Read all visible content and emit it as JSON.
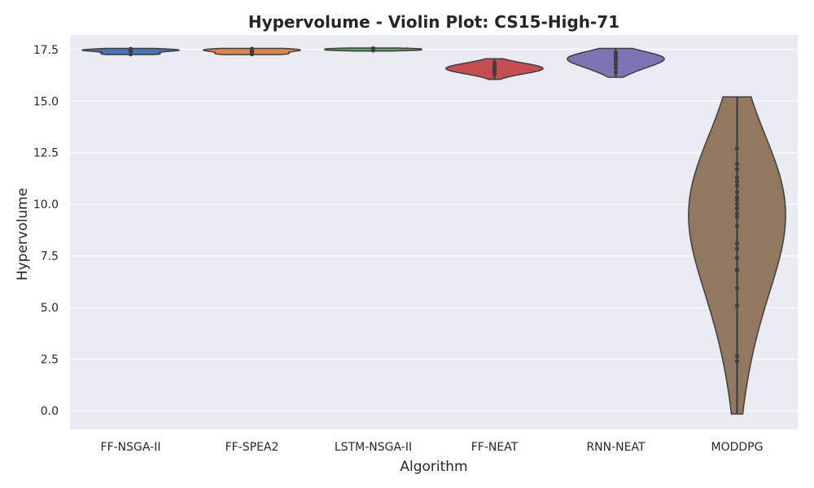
{
  "chart_data": {
    "type": "violin",
    "title": "Hypervolume - Violin Plot: CS15-High-71",
    "xlabel": "Algorithm",
    "ylabel": "Hypervolume",
    "ylim": [
      -0.9,
      18.2
    ],
    "yticks": [
      "0.0",
      "2.5",
      "5.0",
      "7.5",
      "10.0",
      "12.5",
      "15.0",
      "17.5"
    ],
    "ytick_values": [
      0,
      2.5,
      5,
      7.5,
      10,
      12.5,
      15,
      17.5
    ],
    "grid": true,
    "categories": [
      "FF-NSGA-II",
      "FF-SPEA2",
      "LSTM-NSGA-II",
      "FF-NEAT",
      "RNN-NEAT",
      "MODDPG"
    ],
    "series": [
      {
        "category": "FF-NSGA-II",
        "color": "#4c72b0",
        "min": 17.25,
        "max": 17.55,
        "median": 17.45,
        "points": [
          17.27,
          17.3,
          17.42,
          17.45,
          17.48,
          17.52
        ]
      },
      {
        "category": "FF-SPEA2",
        "color": "#dd8452",
        "min": 17.25,
        "max": 17.55,
        "median": 17.42,
        "points": [
          17.27,
          17.3,
          17.4,
          17.44,
          17.5,
          17.53
        ]
      },
      {
        "category": "LSTM-NSGA-II",
        "color": "#55a868",
        "min": 17.42,
        "max": 17.57,
        "median": 17.5,
        "points": [
          17.45,
          17.48,
          17.52,
          17.55
        ]
      },
      {
        "category": "FF-NEAT",
        "color": "#c44e52",
        "min": 16.05,
        "max": 17.05,
        "median": 16.55,
        "points": [
          16.3,
          16.45,
          16.5,
          16.55,
          16.6,
          16.65,
          16.72,
          16.85
        ]
      },
      {
        "category": "RNN-NEAT",
        "color": "#8172b3",
        "min": 16.15,
        "max": 17.55,
        "median": 17.05,
        "points": [
          16.4,
          16.6,
          16.75,
          16.9,
          17.0,
          17.05,
          17.1,
          17.15,
          17.25,
          17.35
        ]
      },
      {
        "category": "MODDPG",
        "color": "#937860",
        "min": -0.15,
        "max": 15.2,
        "median": 9.6,
        "points": [
          2.4,
          2.65,
          5.1,
          5.95,
          6.8,
          6.85,
          7.4,
          7.85,
          8.1,
          8.95,
          9.4,
          9.55,
          9.8,
          10.0,
          10.2,
          10.35,
          10.6,
          10.9,
          11.1,
          11.3,
          11.7,
          11.95,
          12.7
        ]
      }
    ]
  }
}
